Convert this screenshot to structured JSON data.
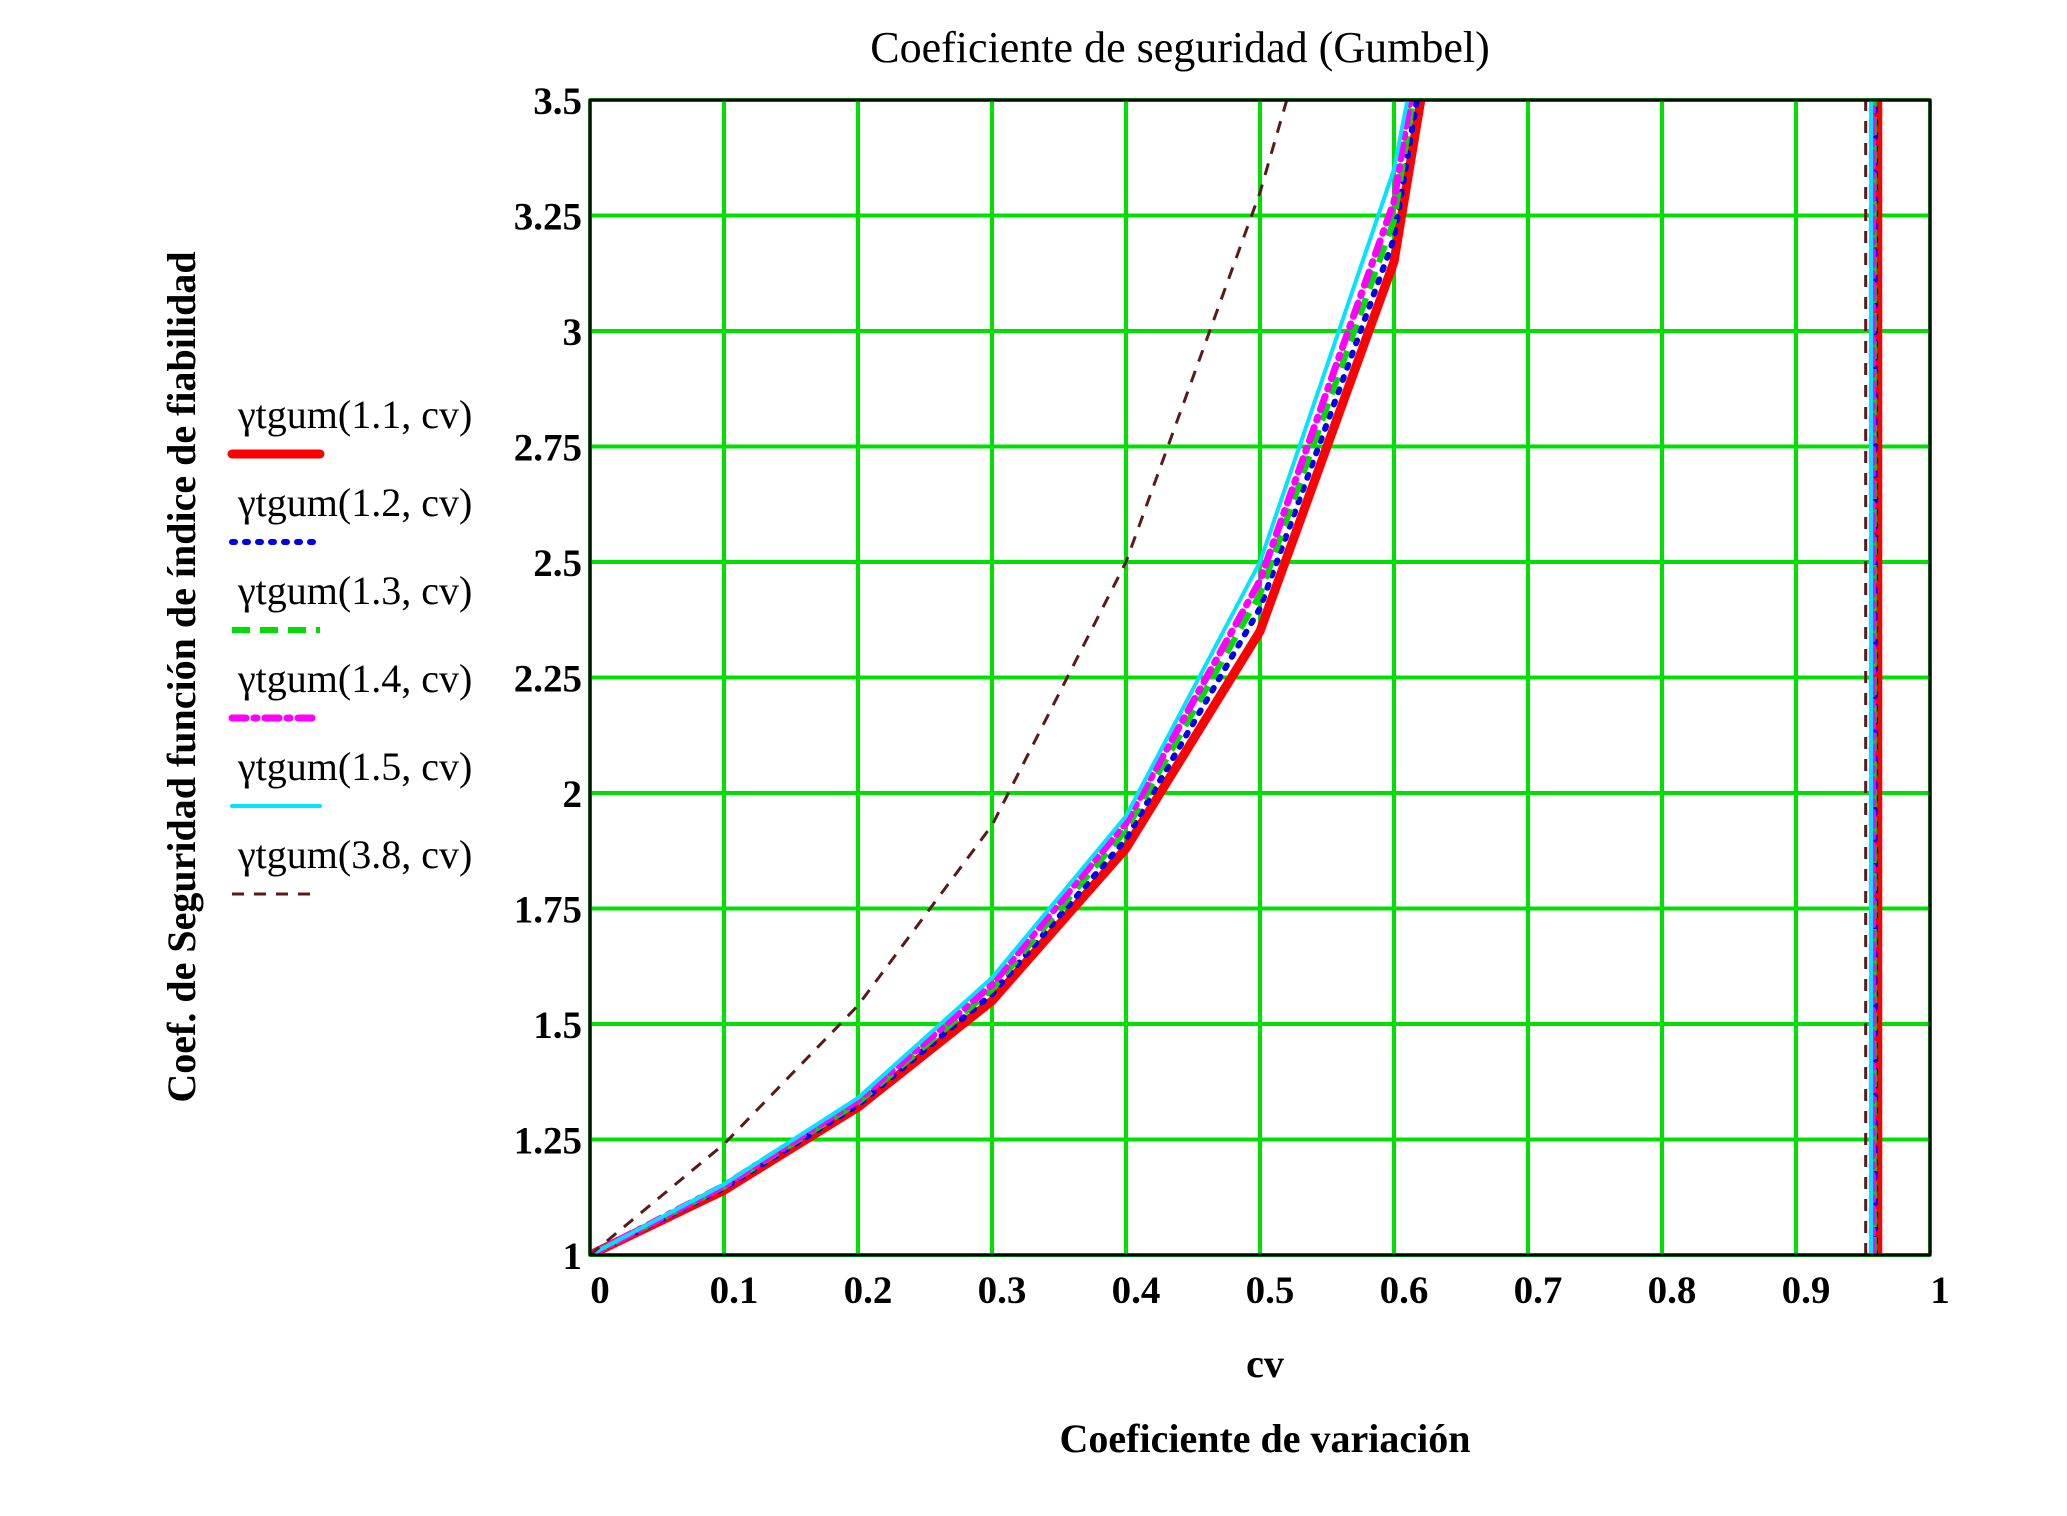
{
  "chart_data": {
    "type": "line",
    "title": "Coeficiente de seguridad (Gumbel)",
    "xlabel": "cv",
    "xlabel2": "Coeficiente de variación",
    "ylabel": "Coef. de Seguridad función de índice de fiabilidad",
    "xlim": [
      0,
      1
    ],
    "ylim": [
      1,
      3.5
    ],
    "xticks": [
      "0",
      "0.1",
      "0.2",
      "0.3",
      "0.4",
      "0.5",
      "0.6",
      "0.7",
      "0.8",
      "0.9",
      "1"
    ],
    "yticks": [
      "1",
      "1.25",
      "1.5",
      "1.75",
      "2",
      "2.25",
      "2.5",
      "2.75",
      "3",
      "3.25",
      "3.5"
    ],
    "grid": true,
    "grid_color": "#00e000",
    "legend_position": "left",
    "series": [
      {
        "name": "γtgum(1.1, cv)",
        "color": "#ff0000",
        "style": "solid-thick",
        "x": [
          0,
          0.1,
          0.2,
          0.3,
          0.4,
          0.5,
          0.6,
          0.62
        ],
        "y": [
          1,
          1.14,
          1.32,
          1.55,
          1.88,
          2.35,
          3.15,
          3.5
        ],
        "asymptote": {
          "x": 0.961,
          "y": [
            1,
            3.5
          ]
        }
      },
      {
        "name": "γtgum(1.2, cv)",
        "color": "#0000ee",
        "style": "dotted",
        "x": [
          0,
          0.1,
          0.2,
          0.3,
          0.4,
          0.5,
          0.6,
          0.617
        ],
        "y": [
          1,
          1.145,
          1.325,
          1.565,
          1.9,
          2.4,
          3.2,
          3.5
        ],
        "asymptote": {
          "x": 0.959,
          "y": [
            1,
            3.5
          ]
        }
      },
      {
        "name": "γtgum(1.3, cv)",
        "color": "#00dd00",
        "style": "dashed",
        "x": [
          0,
          0.1,
          0.2,
          0.3,
          0.4,
          0.5,
          0.6,
          0.614
        ],
        "y": [
          1,
          1.148,
          1.33,
          1.575,
          1.92,
          2.43,
          3.24,
          3.5
        ],
        "asymptote": {
          "x": 0.958,
          "y": [
            1,
            3.5
          ]
        }
      },
      {
        "name": "γtgum(1.4, cv)",
        "color": "#ff00ff",
        "style": "dash-dot",
        "x": [
          0,
          0.1,
          0.2,
          0.3,
          0.4,
          0.5,
          0.6,
          0.612
        ],
        "y": [
          1,
          1.15,
          1.335,
          1.585,
          1.935,
          2.46,
          3.28,
          3.5
        ],
        "asymptote": {
          "x": 0.957,
          "y": [
            1,
            3.5
          ]
        }
      },
      {
        "name": "γtgum(1.5, cv)",
        "color": "#00e5ff",
        "style": "solid",
        "x": [
          0,
          0.1,
          0.2,
          0.3,
          0.4,
          0.5,
          0.6,
          0.61
        ],
        "y": [
          1,
          1.153,
          1.34,
          1.6,
          1.95,
          2.5,
          3.35,
          3.5
        ],
        "asymptote": {
          "x": 0.956,
          "y": [
            1,
            3.5
          ]
        }
      },
      {
        "name": "γtgum(3.8, cv)",
        "color": "#5a1a1a",
        "style": "dashed-thin",
        "x": [
          0,
          0.1,
          0.2,
          0.3,
          0.4,
          0.5,
          0.52
        ],
        "y": [
          1,
          1.24,
          1.54,
          1.93,
          2.5,
          3.3,
          3.5
        ],
        "asymptote": {
          "x": 0.952,
          "y": [
            1,
            3.5
          ]
        }
      }
    ]
  }
}
